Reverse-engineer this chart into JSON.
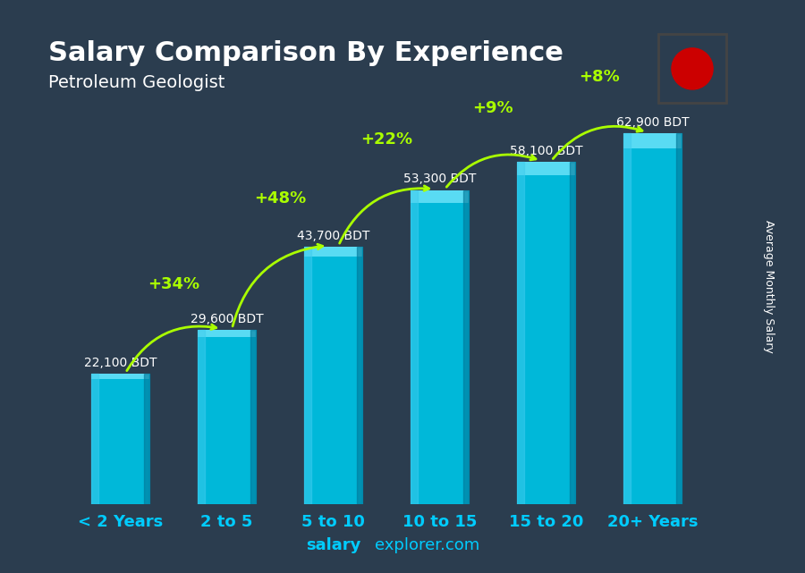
{
  "title": "Salary Comparison By Experience",
  "subtitle": "Petroleum Geologist",
  "categories": [
    "< 2 Years",
    "2 to 5",
    "5 to 10",
    "10 to 15",
    "15 to 20",
    "20+ Years"
  ],
  "values": [
    22100,
    29600,
    43700,
    53300,
    58100,
    62900
  ],
  "labels": [
    "22,100 BDT",
    "29,600 BDT",
    "43,700 BDT",
    "53,300 BDT",
    "58,100 BDT",
    "62,900 BDT"
  ],
  "pct_labels": [
    "+34%",
    "+48%",
    "+22%",
    "+9%",
    "+8%"
  ],
  "bar_color_top": "#00d4ff",
  "bar_color_bottom": "#0099cc",
  "bar_color_mid": "#00bce0",
  "bg_color_top": "#2a3a4a",
  "bg_color_bottom": "#1a2a1a",
  "title_color": "#ffffff",
  "subtitle_color": "#ffffff",
  "label_color": "#ffffff",
  "pct_color": "#aaff00",
  "xticklabel_color": "#00ccff",
  "footer_color": "#00ccff",
  "footer_bold": "salary",
  "footer_normal": "explorer.com",
  "ylabel_text": "Average Monthly Salary",
  "max_val": 70000,
  "flag_green": "#006a00",
  "flag_red": "#cc0000"
}
